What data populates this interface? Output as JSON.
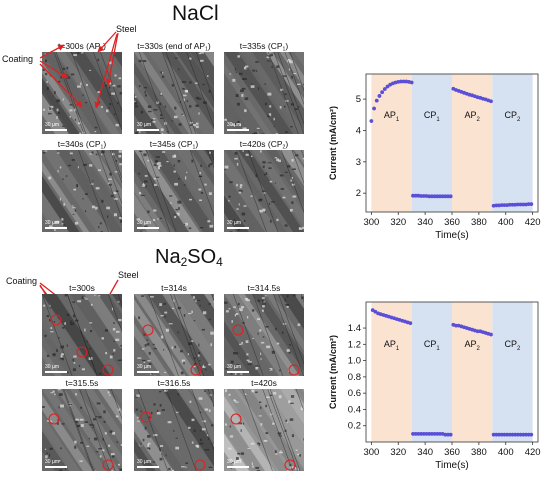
{
  "nacl": {
    "title": "NaCl",
    "annotations": {
      "coating": "Coating",
      "steel": "Steel"
    },
    "panels": [
      {
        "t": "t=300s (AP",
        "s": "1",
        "e": ")"
      },
      {
        "t": "t=330s (end of AP",
        "s": "1",
        "e": ")"
      },
      {
        "t": "t=335s (CP",
        "s": "1",
        "e": ")"
      },
      {
        "t": "t=340s (CP",
        "s": "1",
        "e": ")"
      },
      {
        "t": "t=345s (CP",
        "s": "1",
        "e": ")"
      },
      {
        "t": "t=420s (CP",
        "s": "2",
        "e": ")"
      }
    ],
    "scale_label": "30 µm"
  },
  "na2so4": {
    "title_main": "Na",
    "title_sub1": "2",
    "title_mid": "SO",
    "title_sub2": "4",
    "annotations": {
      "coating": "Coating",
      "steel": "Steel"
    },
    "panels": [
      {
        "t": "t=300s"
      },
      {
        "t": "t=314s"
      },
      {
        "t": "t=314.5s"
      },
      {
        "t": "t=315.5s"
      },
      {
        "t": "t=316.5s"
      },
      {
        "t": "t=420s"
      }
    ],
    "scale_label": "30 µm"
  },
  "colors": {
    "series": "#5a4fd6",
    "anodic": "#fbe3d2",
    "cathodic": "#d6e2f2",
    "annotation": "#e02020"
  },
  "chart_data": [
    {
      "type": "scatter",
      "xlabel": "Time(s)",
      "ylabel": "Current (mA/cm²)",
      "xlim": [
        296,
        424
      ],
      "ylim": [
        1.4,
        5.8
      ],
      "xticks": [
        300,
        320,
        340,
        360,
        380,
        400,
        420
      ],
      "yticks": [
        2,
        3,
        4,
        5
      ],
      "regions": [
        {
          "label": "AP",
          "sub": "1",
          "x0": 300,
          "x1": 330,
          "kind": "anodic"
        },
        {
          "label": "CP",
          "sub": "1",
          "x0": 330,
          "x1": 360,
          "kind": "cathodic"
        },
        {
          "label": "AP",
          "sub": "2",
          "x0": 360,
          "x1": 390,
          "kind": "anodic"
        },
        {
          "label": "CP",
          "sub": "2",
          "x0": 390,
          "x1": 420,
          "kind": "cathodic"
        }
      ],
      "segments": [
        {
          "x": [
            300,
            302,
            304,
            306,
            308,
            310,
            312,
            314,
            316,
            318,
            320,
            322,
            324,
            326,
            328,
            330
          ],
          "y": [
            4.3,
            4.7,
            4.95,
            5.1,
            5.22,
            5.32,
            5.4,
            5.46,
            5.5,
            5.53,
            5.55,
            5.56,
            5.56,
            5.56,
            5.55,
            5.53
          ]
        },
        {
          "x": [
            331,
            333,
            335,
            337,
            339,
            341,
            343,
            345,
            347,
            349,
            351,
            353,
            355,
            357,
            359
          ],
          "y": [
            1.92,
            1.92,
            1.92,
            1.91,
            1.91,
            1.91,
            1.9,
            1.9,
            1.9,
            1.9,
            1.9,
            1.9,
            1.9,
            1.9,
            1.9
          ]
        },
        {
          "x": [
            361,
            363,
            365,
            367,
            369,
            371,
            373,
            375,
            377,
            379,
            381,
            383,
            385,
            387,
            389
          ],
          "y": [
            5.33,
            5.29,
            5.26,
            5.23,
            5.2,
            5.17,
            5.14,
            5.12,
            5.09,
            5.06,
            5.04,
            5.01,
            4.99,
            4.96,
            4.93
          ]
        },
        {
          "x": [
            391,
            393,
            395,
            397,
            399,
            401,
            403,
            405,
            407,
            409,
            411,
            413,
            415,
            417,
            419
          ],
          "y": [
            1.6,
            1.61,
            1.61,
            1.62,
            1.62,
            1.62,
            1.63,
            1.63,
            1.63,
            1.64,
            1.64,
            1.64,
            1.64,
            1.65,
            1.65
          ]
        }
      ]
    },
    {
      "type": "scatter",
      "xlabel": "Time(s)",
      "ylabel": "Current (mA/cm²)",
      "xlim": [
        296,
        424
      ],
      "ylim": [
        0.0,
        1.72
      ],
      "xticks": [
        300,
        320,
        340,
        360,
        380,
        400,
        420
      ],
      "yticks": [
        0.2,
        0.4,
        0.6,
        0.8,
        1.0,
        1.2,
        1.4
      ],
      "regions": [
        {
          "label": "AP",
          "sub": "1",
          "x0": 300,
          "x1": 330,
          "kind": "anodic"
        },
        {
          "label": "CP",
          "sub": "1",
          "x0": 330,
          "x1": 360,
          "kind": "cathodic"
        },
        {
          "label": "AP",
          "sub": "2",
          "x0": 360,
          "x1": 390,
          "kind": "anodic"
        },
        {
          "label": "CP",
          "sub": "2",
          "x0": 390,
          "x1": 420,
          "kind": "cathodic"
        }
      ],
      "segments": [
        {
          "x": [
            301,
            303,
            305,
            307,
            309,
            311,
            313,
            315,
            317,
            319,
            321,
            323,
            325,
            327,
            329
          ],
          "y": [
            1.62,
            1.6,
            1.58,
            1.57,
            1.56,
            1.55,
            1.54,
            1.53,
            1.52,
            1.51,
            1.5,
            1.49,
            1.48,
            1.47,
            1.46
          ]
        },
        {
          "x": [
            331,
            333,
            335,
            337,
            339,
            341,
            343,
            345,
            347,
            349,
            351,
            353,
            355,
            357,
            359
          ],
          "y": [
            0.1,
            0.1,
            0.1,
            0.1,
            0.1,
            0.1,
            0.1,
            0.1,
            0.1,
            0.1,
            0.1,
            0.1,
            0.09,
            0.09,
            0.09
          ]
        },
        {
          "x": [
            361,
            363,
            365,
            367,
            369,
            371,
            373,
            375,
            377,
            379,
            381,
            383,
            385,
            387,
            389
          ],
          "y": [
            1.44,
            1.43,
            1.43,
            1.42,
            1.41,
            1.4,
            1.39,
            1.38,
            1.37,
            1.36,
            1.36,
            1.35,
            1.34,
            1.33,
            1.32
          ]
        },
        {
          "x": [
            391,
            393,
            395,
            397,
            399,
            401,
            403,
            405,
            407,
            409,
            411,
            413,
            415,
            417,
            419
          ],
          "y": [
            0.09,
            0.09,
            0.09,
            0.09,
            0.09,
            0.09,
            0.09,
            0.09,
            0.09,
            0.09,
            0.09,
            0.09,
            0.09,
            0.09,
            0.09
          ]
        }
      ]
    }
  ]
}
